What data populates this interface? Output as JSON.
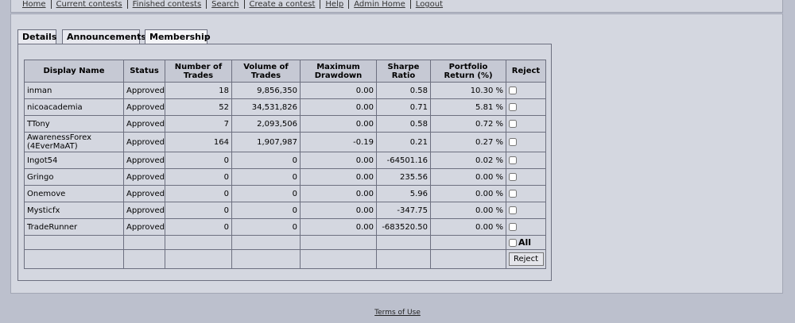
{
  "nav": [
    "Home",
    "Current contests",
    "Finished contests",
    "Search",
    "Create a contest",
    "Help",
    "Admin Home",
    "Logout"
  ],
  "tabs": [
    "Details",
    "Announcements",
    "Membership"
  ],
  "table": {
    "headers": [
      "Display Name",
      "Status",
      "Number of Trades",
      "Volume of Trades",
      "Maximum Drawdown",
      "Sharpe Ratio",
      "Portfolio Return (%)",
      "Reject"
    ],
    "rows": [
      [
        "inman",
        "Approved",
        "18",
        "9,856,350",
        "0.00",
        "0.58",
        "10.30 %"
      ],
      [
        "nicoacademia",
        "Approved",
        "52",
        "34,531,826",
        "0.00",
        "0.71",
        "5.81 %"
      ],
      [
        "TTony",
        "Approved",
        "7",
        "2,093,506",
        "0.00",
        "0.58",
        "0.72 %"
      ],
      [
        "AwarenessForex (4EverMaAT)",
        "Approved",
        "164",
        "1,907,987",
        "-0.19",
        "0.21",
        "0.27 %"
      ],
      [
        "Ingot54",
        "Approved",
        "0",
        "0",
        "0.00",
        "-64501.16",
        "0.02 %"
      ],
      [
        "Gringo",
        "Approved",
        "0",
        "0",
        "0.00",
        "235.56",
        "0.00 %"
      ],
      [
        "Onemove",
        "Approved",
        "0",
        "0",
        "0.00",
        "5.96",
        "0.00 %"
      ],
      [
        "Mysticfx",
        "Approved",
        "0",
        "0",
        "0.00",
        "-347.75",
        "0.00 %"
      ],
      [
        "TradeRunner",
        "Approved",
        "0",
        "0",
        "0.00",
        "-683520.50",
        "0.00 %"
      ]
    ],
    "select_all": "All",
    "button": "Reject"
  },
  "footer": "Terms of Use"
}
